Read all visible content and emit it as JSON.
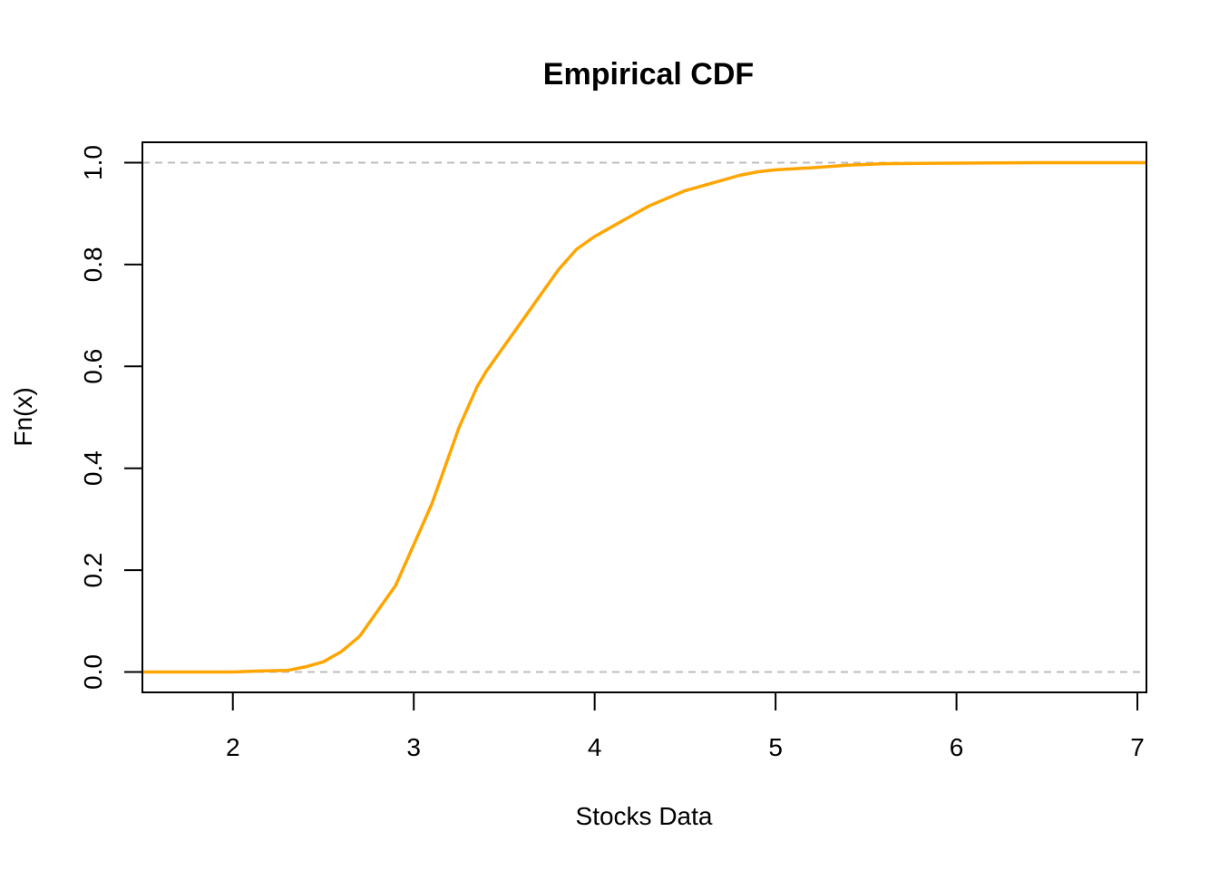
{
  "chart_data": {
    "type": "line",
    "title": "Empirical CDF",
    "xlabel": "Stocks Data",
    "ylabel": "Fn(x)",
    "xlim": [
      1.5,
      7.05
    ],
    "ylim": [
      -0.04,
      1.04
    ],
    "xticks": [
      2,
      3,
      4,
      5,
      6,
      7
    ],
    "yticks": [
      0.0,
      0.2,
      0.4,
      0.6,
      0.8,
      1.0
    ],
    "xtick_labels": [
      "2",
      "3",
      "4",
      "5",
      "6",
      "7"
    ],
    "ytick_labels": [
      "0.0",
      "0.2",
      "0.4",
      "0.6",
      "0.8",
      "1.0"
    ],
    "reference_lines": [
      0,
      1
    ],
    "grid": false,
    "line_color": "#FFA500",
    "reference_color": "#BDBDBD",
    "series": [
      {
        "x": [
          1.5,
          2.0,
          2.15,
          2.3,
          2.4,
          2.5,
          2.6,
          2.7,
          2.8,
          2.9,
          3.0,
          3.05,
          3.1,
          3.15,
          3.2,
          3.25,
          3.3,
          3.35,
          3.4,
          3.5,
          3.6,
          3.7,
          3.8,
          3.9,
          4.0,
          4.1,
          4.2,
          4.3,
          4.4,
          4.5,
          4.6,
          4.7,
          4.8,
          4.9,
          5.0,
          5.2,
          5.4,
          5.6,
          6.0,
          6.5,
          7.05
        ],
        "y": [
          0.0,
          0.0,
          0.002,
          0.003,
          0.01,
          0.02,
          0.04,
          0.07,
          0.12,
          0.17,
          0.25,
          0.29,
          0.33,
          0.38,
          0.43,
          0.48,
          0.52,
          0.56,
          0.59,
          0.64,
          0.69,
          0.74,
          0.79,
          0.83,
          0.855,
          0.875,
          0.895,
          0.915,
          0.93,
          0.945,
          0.955,
          0.965,
          0.975,
          0.982,
          0.986,
          0.99,
          0.995,
          0.998,
          0.999,
          1.0,
          1.0
        ]
      }
    ]
  }
}
